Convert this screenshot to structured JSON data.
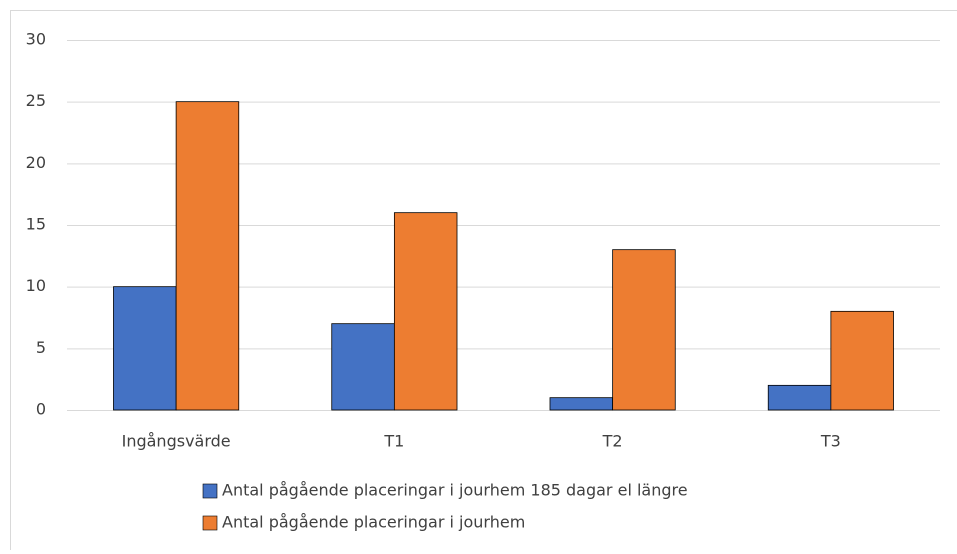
{
  "chart_data": {
    "type": "bar",
    "categories": [
      "Ingångsvärde",
      "T1",
      "T2",
      "T3"
    ],
    "series": [
      {
        "name": "Antal pågående placeringar i jourhem 185 dagar el längre",
        "color": "#4472c4",
        "values": [
          10,
          7,
          1,
          2
        ]
      },
      {
        "name": "Antal pågående placeringar i jourhem",
        "color": "#ed7d31",
        "values": [
          25,
          16,
          13,
          8
        ]
      }
    ],
    "ylim": [
      0,
      30
    ],
    "yticks": [
      0,
      5,
      10,
      15,
      20,
      25,
      30
    ],
    "grid": true,
    "legend": "bottom"
  }
}
